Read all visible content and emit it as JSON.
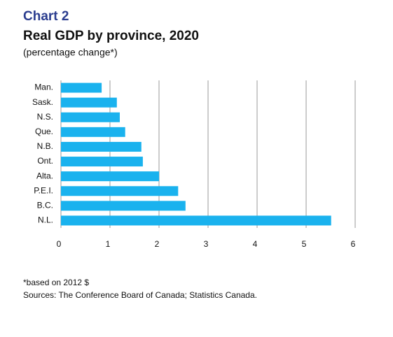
{
  "chart_data": {
    "type": "bar",
    "orientation": "horizontal",
    "label": "Chart 2",
    "title": "Real GDP by province, 2020",
    "subtitle": "(percentage change*)",
    "categories": [
      "Man.",
      "Sask.",
      "N.S.",
      "Que.",
      "N.B.",
      "Ont.",
      "Alta.",
      "P.E.I.",
      "B.C.",
      "N.L."
    ],
    "values": [
      0.83,
      1.14,
      1.2,
      1.31,
      1.64,
      1.67,
      2.0,
      2.39,
      2.54,
      5.51
    ],
    "color": "#1ab2ee",
    "xlim": [
      0,
      6
    ],
    "xticks": [
      0,
      1,
      2,
      3,
      4,
      5,
      6
    ],
    "grid": true,
    "notes": [
      "*based on 2012 $",
      "Sources: The Conference Board of Canada; Statistics Canada."
    ]
  }
}
